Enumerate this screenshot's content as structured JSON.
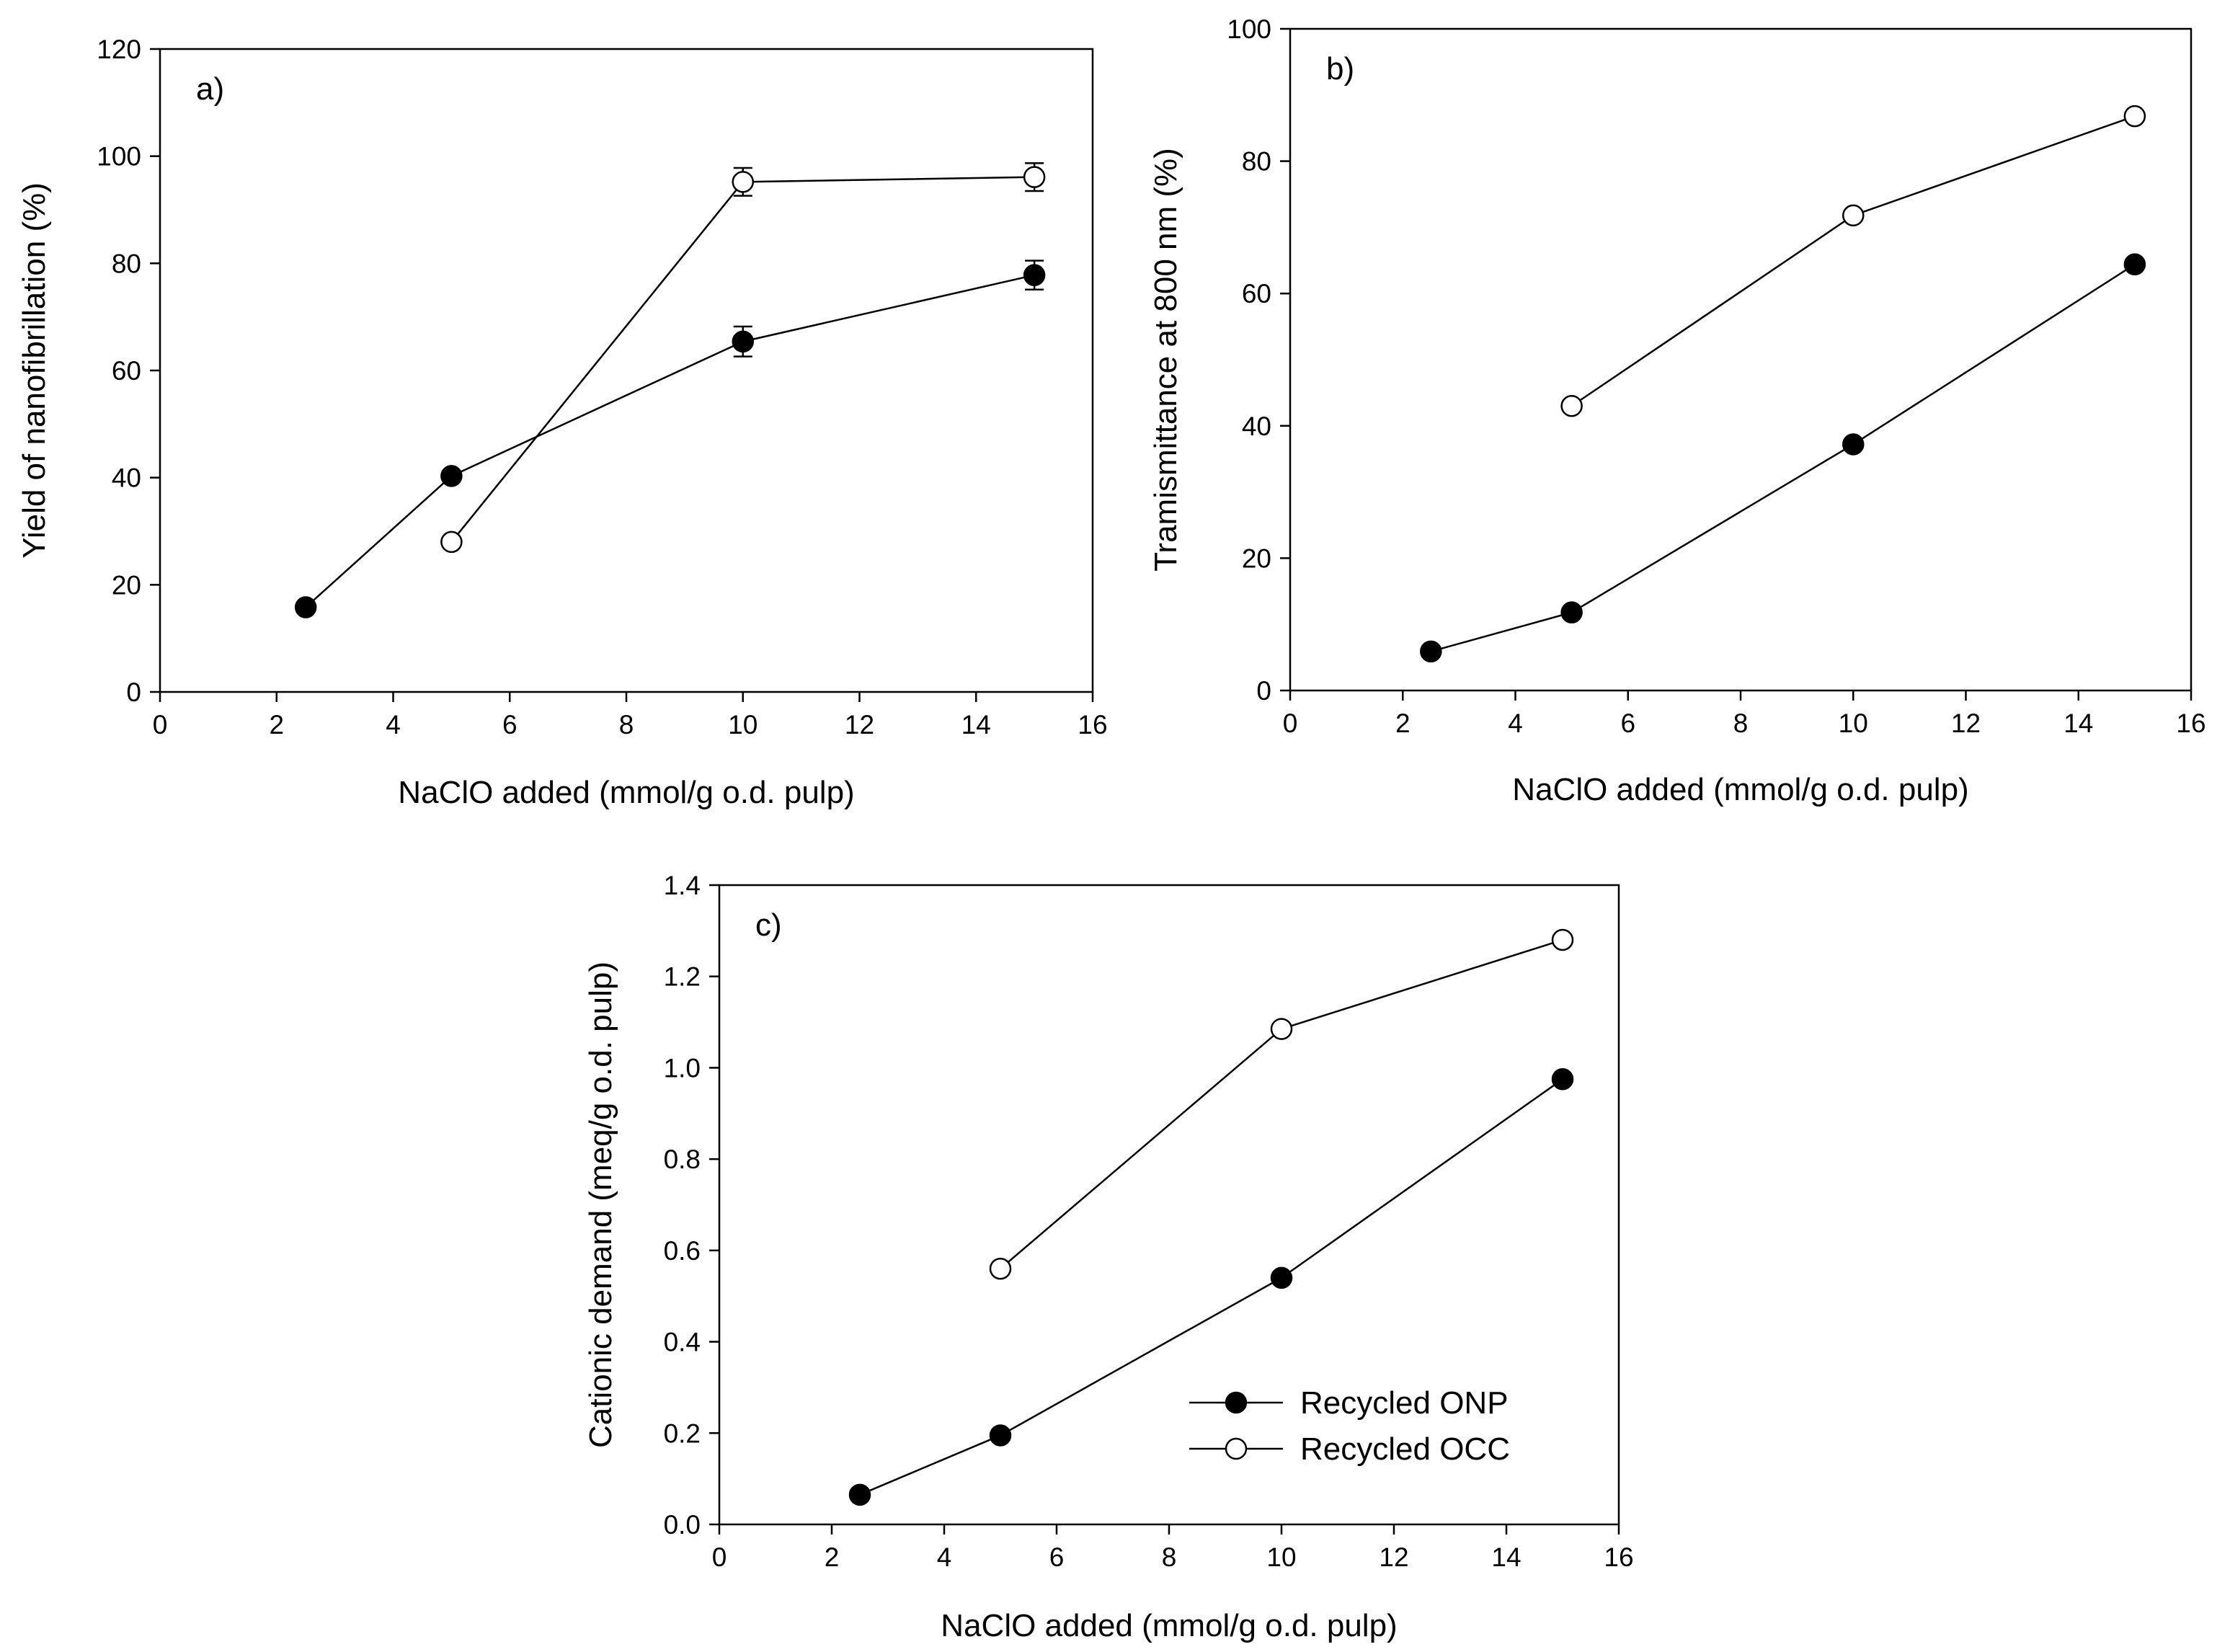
{
  "figure": {
    "series_names": [
      "Recycled ONP",
      "Recycled OCC"
    ]
  },
  "chart_data": [
    {
      "id": "a",
      "type": "line",
      "panel_label": "a)",
      "xlabel": "NaClO added (mmol/g o.d. pulp)",
      "ylabel": "Yield of nanofibrillation (%)",
      "xlim": [
        0,
        16
      ],
      "ylim": [
        0,
        120
      ],
      "xticks": [
        0,
        2,
        4,
        6,
        8,
        10,
        12,
        14,
        16
      ],
      "yticks": [
        0,
        20,
        40,
        60,
        80,
        100,
        120
      ],
      "series": [
        {
          "name": "Recycled ONP",
          "marker": "filled-circle",
          "x": [
            2.5,
            5,
            10,
            15
          ],
          "y": [
            15.8,
            40.3,
            65.4,
            77.8
          ],
          "yerr": [
            0,
            0,
            2.8,
            2.7
          ]
        },
        {
          "name": "Recycled OCC",
          "marker": "open-circle",
          "x": [
            5,
            10,
            15
          ],
          "y": [
            28,
            95.2,
            96.1
          ],
          "yerr": [
            0,
            2.6,
            2.6
          ]
        }
      ]
    },
    {
      "id": "b",
      "type": "line",
      "panel_label": "b)",
      "xlabel": "NaClO added (mmol/g o.d. pulp)",
      "ylabel": "Tramismittance at 800 nm (%)",
      "xlim": [
        0,
        16
      ],
      "ylim": [
        0,
        100
      ],
      "xticks": [
        0,
        2,
        4,
        6,
        8,
        10,
        12,
        14,
        16
      ],
      "yticks": [
        0,
        20,
        40,
        60,
        80,
        100
      ],
      "series": [
        {
          "name": "Recycled ONP",
          "marker": "filled-circle",
          "x": [
            2.5,
            5,
            10,
            15
          ],
          "y": [
            5.9,
            11.8,
            37.2,
            64.4
          ],
          "yerr": [
            0,
            0,
            0,
            0
          ]
        },
        {
          "name": "Recycled OCC",
          "marker": "open-circle",
          "x": [
            5,
            10,
            15
          ],
          "y": [
            43,
            71.8,
            86.8
          ],
          "yerr": [
            0,
            0,
            0
          ]
        }
      ]
    },
    {
      "id": "c",
      "type": "line",
      "panel_label": "c)",
      "xlabel": "NaClO added (mmol/g o.d. pulp)",
      "ylabel": "Cationic demand (meq/g o.d. pulp)",
      "xlim": [
        0,
        16
      ],
      "ylim": [
        0,
        1.4
      ],
      "xticks": [
        0,
        2,
        4,
        6,
        8,
        10,
        12,
        14,
        16
      ],
      "yticks": [
        0.0,
        0.2,
        0.4,
        0.6,
        0.8,
        1.0,
        1.2,
        1.4
      ],
      "legend": "lower-right",
      "series": [
        {
          "name": "Recycled ONP",
          "marker": "filled-circle",
          "x": [
            2.5,
            5,
            10,
            15
          ],
          "y": [
            0.065,
            0.195,
            0.54,
            0.975
          ],
          "yerr": [
            0,
            0,
            0,
            0
          ]
        },
        {
          "name": "Recycled OCC",
          "marker": "open-circle",
          "x": [
            5,
            10,
            15
          ],
          "y": [
            0.56,
            1.085,
            1.28
          ],
          "yerr": [
            0,
            0,
            0
          ]
        }
      ]
    }
  ]
}
